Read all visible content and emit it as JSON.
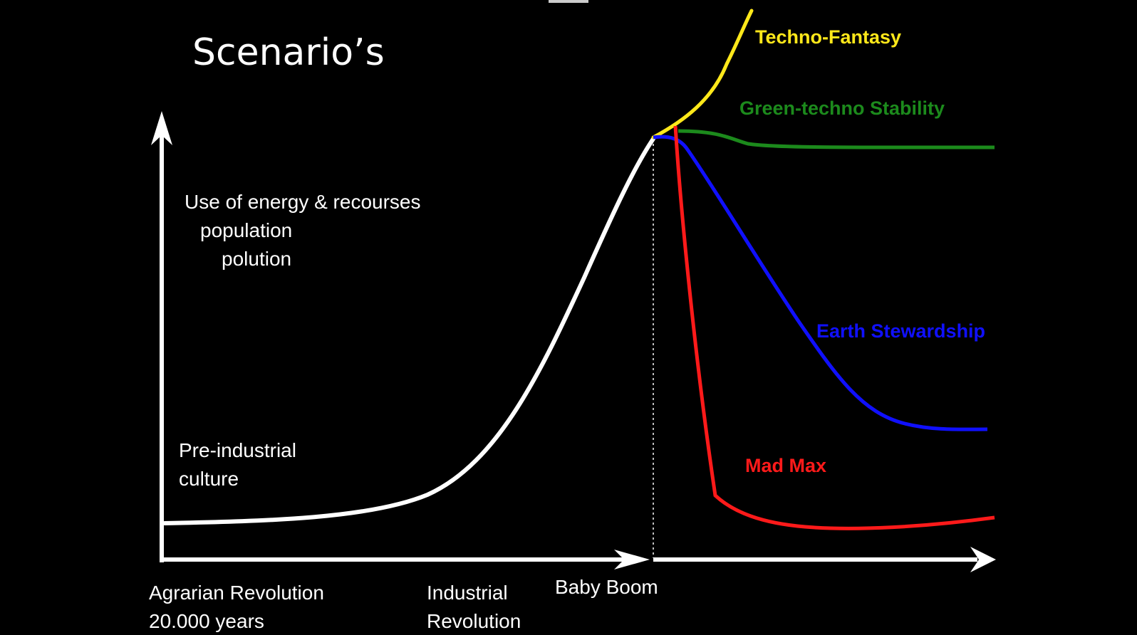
{
  "slide": {
    "title": "Scenario’s",
    "y_axis_label_lines": [
      "Use of energy & recourses",
      "population",
      "polution"
    ],
    "pre_industrial_lines": [
      "Pre-industrial",
      "culture"
    ]
  },
  "x_axis_labels": {
    "agrarian_lines": [
      "Agrarian Revolution",
      "20.000 years"
    ],
    "industrial_lines": [
      "Industrial",
      "Revolution"
    ],
    "baby_boom": "Baby Boom"
  },
  "scenarios": [
    {
      "label": "Techno-Fantasy",
      "color": "#FFE81A"
    },
    {
      "label": "Green-techno Stability",
      "color": "#1C8A1C"
    },
    {
      "label": "Earth Stewardship",
      "color": "#1010FF"
    },
    {
      "label": "Mad Max",
      "color": "#FF1A1A"
    }
  ],
  "colors": {
    "background": "#000000",
    "main_curve": "#FFFFFF",
    "axes": "#FFFFFF"
  }
}
